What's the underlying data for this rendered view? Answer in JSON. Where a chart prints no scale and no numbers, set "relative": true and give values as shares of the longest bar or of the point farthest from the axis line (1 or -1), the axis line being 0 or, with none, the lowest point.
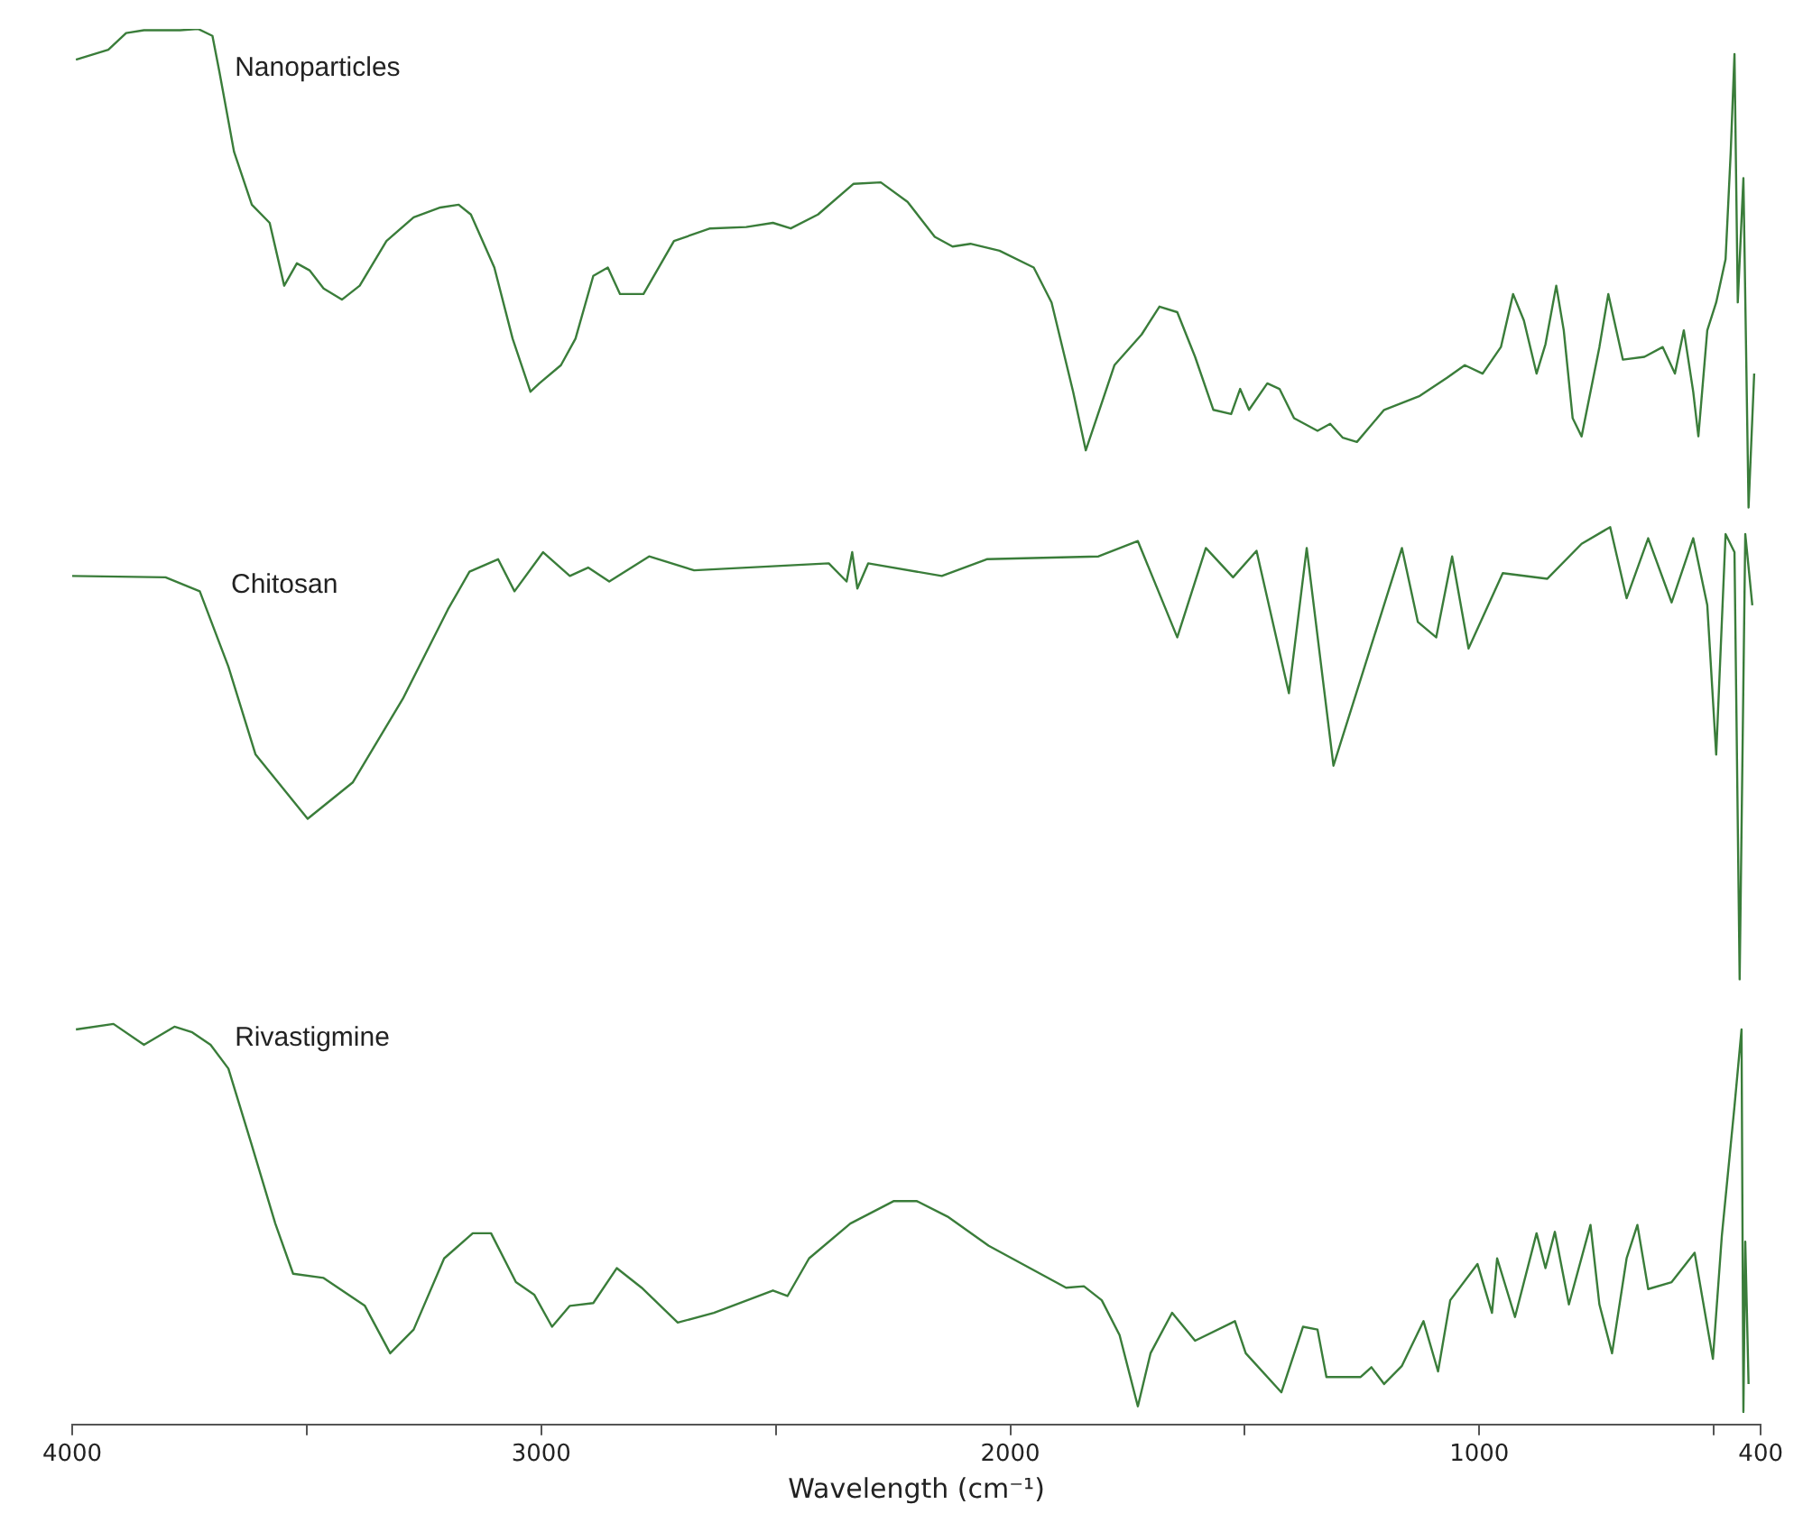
{
  "chart_data": {
    "type": "line",
    "relative": true,
    "xlabel": "Wavelength (cm⁻¹)",
    "xlim": [
      4000,
      400
    ],
    "xticks": [
      4000,
      {
        "value": 3500,
        "label": null
      },
      3000,
      {
        "value": 2500,
        "label": null
      },
      2000,
      {
        "value": 1500,
        "label": null
      },
      1000,
      {
        "value": 500,
        "label": null
      },
      400
    ],
    "series": [
      {
        "name": "Nanoparticles",
        "color": "#3a7d3a",
        "x": [
          3992,
          3923,
          3885,
          3847,
          3770,
          3732,
          3701,
          3686,
          3655,
          3617,
          3579,
          3548,
          3521,
          3494,
          3464,
          3425,
          3387,
          3330,
          3272,
          3215,
          3176,
          3150,
          3100,
          3061,
          3023,
          3004,
          2958,
          2927,
          2889,
          2858,
          2832,
          2782,
          2717,
          2640,
          2563,
          2506,
          2468,
          2410,
          2334,
          2276,
          2219,
          2161,
          2123,
          2085,
          2023,
          1950,
          1912,
          1866,
          1839,
          1816,
          1778,
          1720,
          1682,
          1644,
          1606,
          1567,
          1529,
          1510,
          1491,
          1452,
          1426,
          1395,
          1345,
          1318,
          1291,
          1261,
          1203,
          1127,
          1069,
          1031,
          993,
          954,
          928,
          905,
          878,
          859,
          836,
          820,
          801,
          782,
          763,
          744,
          725,
          694,
          648,
          609,
          583,
          564,
          544,
          533,
          514,
          495,
          475,
          464,
          456,
          449,
          437,
          426,
          414
        ],
        "values": [
          0.978,
          0.985,
          0.997,
          0.999,
          0.999,
          1,
          0.995,
          0.969,
          0.912,
          0.874,
          0.861,
          0.816,
          0.832,
          0.827,
          0.814,
          0.806,
          0.816,
          0.848,
          0.865,
          0.872,
          0.874,
          0.867,
          0.829,
          0.778,
          0.74,
          0.746,
          0.759,
          0.778,
          0.823,
          0.829,
          0.81,
          0.81,
          0.848,
          0.857,
          0.858,
          0.861,
          0.857,
          0.867,
          0.889,
          0.89,
          0.876,
          0.851,
          0.844,
          0.846,
          0.841,
          0.829,
          0.804,
          0.74,
          0.698,
          0.721,
          0.759,
          0.781,
          0.801,
          0.797,
          0.765,
          0.727,
          0.724,
          0.742,
          0.727,
          0.746,
          0.742,
          0.721,
          0.712,
          0.717,
          0.707,
          0.704,
          0.727,
          0.737,
          0.75,
          0.759,
          0.753,
          0.772,
          0.81,
          0.791,
          0.753,
          0.774,
          0.816,
          0.784,
          0.721,
          0.708,
          0.74,
          0.772,
          0.81,
          0.763,
          0.765,
          0.772,
          0.753,
          0.784,
          0.74,
          0.708,
          0.784,
          0.804,
          0.835,
          0.912,
          0.982,
          0.804,
          0.893,
          0.657,
          0.753
        ]
      },
      {
        "name": "Chitosan",
        "color": "#3a7d3a",
        "x": [
          4000,
          3801,
          3728,
          3667,
          3609,
          3498,
          3402,
          3295,
          3199,
          3153,
          3092,
          3057,
          2996,
          2939,
          2900,
          2855,
          2770,
          2674,
          2387,
          2349,
          2337,
          2326,
          2303,
          2146,
          2050,
          1812,
          1728,
          1644,
          1583,
          1525,
          1475,
          1406,
          1368,
          1311,
          1165,
          1131,
          1092,
          1058,
          1023,
          950,
          855,
          782,
          721,
          686,
          640,
          590,
          544,
          514,
          495,
          475,
          456,
          445,
          433,
          418
        ],
        "values": [
          0.608,
          0.607,
          0.597,
          0.543,
          0.48,
          0.434,
          0.46,
          0.52,
          0.584,
          0.611,
          0.62,
          0.597,
          0.625,
          0.608,
          0.614,
          0.604,
          0.622,
          0.612,
          0.617,
          0.604,
          0.625,
          0.599,
          0.617,
          0.608,
          0.62,
          0.622,
          0.633,
          0.564,
          0.628,
          0.607,
          0.626,
          0.524,
          0.628,
          0.472,
          0.628,
          0.575,
          0.564,
          0.622,
          0.556,
          0.61,
          0.606,
          0.631,
          0.643,
          0.592,
          0.635,
          0.589,
          0.635,
          0.587,
          0.48,
          0.638,
          0.625,
          0.319,
          0.638,
          0.587
        ]
      },
      {
        "name": "Rivastigmine",
        "color": "#3a7d3a",
        "x": [
          3992,
          3912,
          3847,
          3782,
          3744,
          3705,
          3667,
          3617,
          3567,
          3529,
          3464,
          3376,
          3322,
          3272,
          3207,
          3146,
          3107,
          3054,
          3015,
          2977,
          2939,
          2889,
          2839,
          2786,
          2709,
          2632,
          2506,
          2475,
          2429,
          2341,
          2249,
          2199,
          2134,
          2046,
          1881,
          1843,
          1805,
          1767,
          1728,
          1701,
          1655,
          1606,
          1521,
          1498,
          1422,
          1376,
          1345,
          1326,
          1253,
          1230,
          1203,
          1165,
          1119,
          1088,
          1062,
          1004,
          973,
          962,
          924,
          878,
          859,
          839,
          809,
          763,
          744,
          717,
          686,
          663,
          640,
          590,
          541,
          502,
          483,
          456,
          441,
          437,
          433,
          426
        ],
        "values": [
          0.283,
          0.287,
          0.272,
          0.285,
          0.281,
          0.272,
          0.255,
          0.2,
          0.144,
          0.108,
          0.105,
          0.085,
          0.051,
          0.068,
          0.119,
          0.137,
          0.137,
          0.102,
          0.093,
          0.07,
          0.085,
          0.087,
          0.112,
          0.098,
          0.073,
          0.08,
          0.096,
          0.092,
          0.119,
          0.144,
          0.16,
          0.16,
          0.149,
          0.128,
          0.098,
          0.099,
          0.089,
          0.064,
          0.013,
          0.051,
          0.08,
          0.06,
          0.074,
          0.051,
          0.023,
          0.07,
          0.068,
          0.034,
          0.034,
          0.041,
          0.029,
          0.042,
          0.074,
          0.038,
          0.089,
          0.115,
          0.08,
          0.119,
          0.077,
          0.137,
          0.112,
          0.138,
          0.086,
          0.143,
          0.086,
          0.051,
          0.119,
          0.143,
          0.097,
          0.102,
          0.123,
          0.047,
          0.135,
          0.228,
          0.283,
          0.009,
          0.131,
          0.029
        ]
      }
    ]
  }
}
